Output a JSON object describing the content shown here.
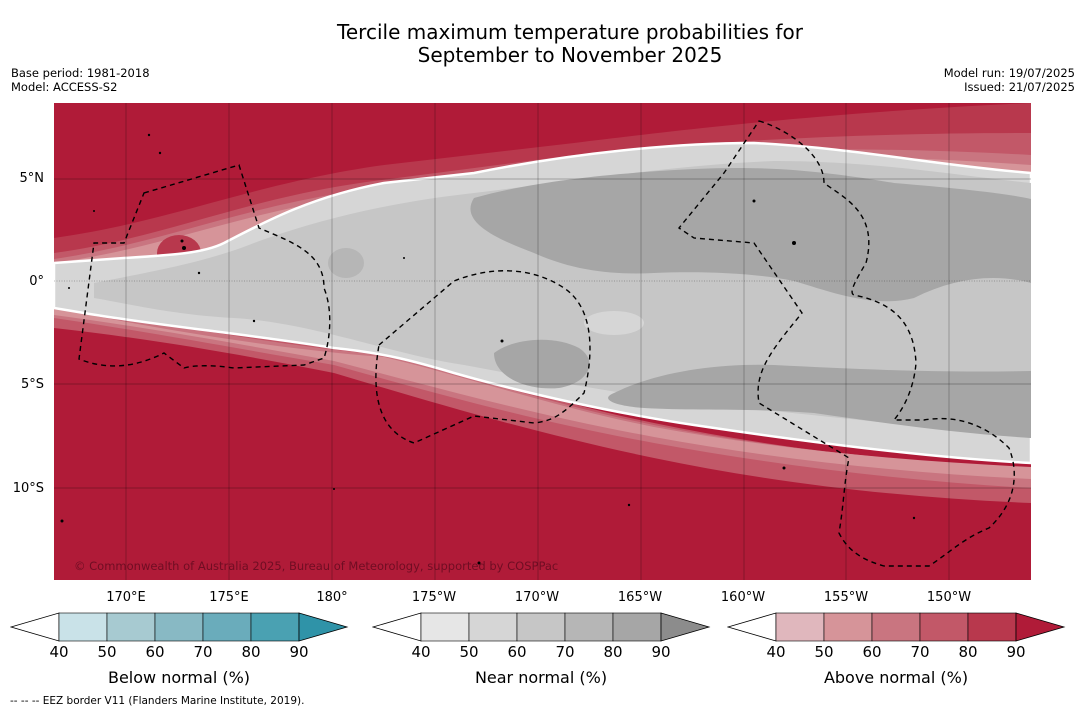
{
  "title_line1": "Tercile maximum temperature probabilities for",
  "title_line2": "September to November 2025",
  "base_period": "Base period: 1981-2018",
  "model": "Model: ACCESS-S2",
  "model_run": "Model run: 19/07/2025",
  "issued": "Issued: 21/07/2025",
  "lat_labels": [
    "5°N",
    "0°",
    "5°S",
    "10°S"
  ],
  "lon_labels": [
    "170°E",
    "175°E",
    "180°",
    "175°W",
    "170°W",
    "165°W",
    "160°W",
    "155°W",
    "150°W"
  ],
  "copyright": "© Commonwealth of Australia 2025, Bureau of Meteorology, supported by COSPPac",
  "colorbars": [
    {
      "label": "Below normal (%)",
      "ticks": [
        "40",
        "50",
        "60",
        "70",
        "80",
        "90"
      ],
      "colors": [
        "#c9e2e8",
        "#a7cad1",
        "#88b9c4",
        "#6aacbb",
        "#4aa1b2",
        "#2f93a8"
      ]
    },
    {
      "label": "Near normal (%)",
      "ticks": [
        "40",
        "50",
        "60",
        "70",
        "80",
        "90"
      ],
      "colors": [
        "#e6e6e6",
        "#d6d6d6",
        "#c6c6c6",
        "#b6b6b6",
        "#a6a6a6",
        "#8c8c8c"
      ]
    },
    {
      "label": "Above normal (%)",
      "ticks": [
        "40",
        "50",
        "60",
        "70",
        "80",
        "90"
      ],
      "colors": [
        "#e0b7bd",
        "#d69499",
        "#c97580",
        "#c25868",
        "#b8384d",
        "#b01b38"
      ]
    }
  ],
  "footer": "-- -- -- EEZ border V11 (Flanders Marine Institute, 2019)."
}
